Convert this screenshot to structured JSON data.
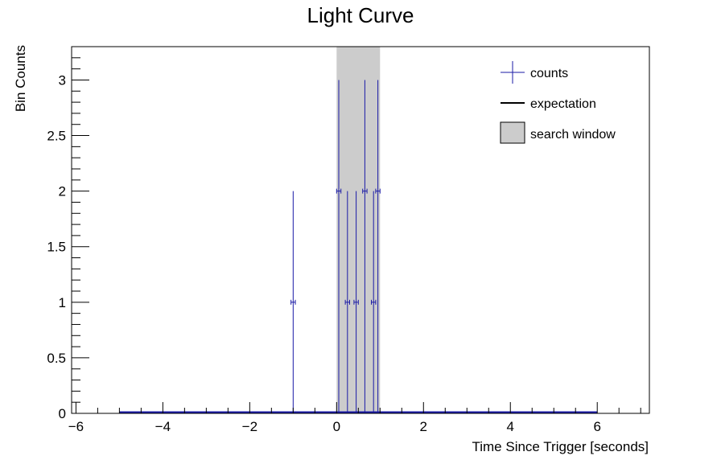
{
  "chart_data": {
    "type": "scatter",
    "title": "Light Curve",
    "xlabel": "Time Since Trigger [seconds]",
    "ylabel": "Bin Counts",
    "xlim": [
      -6.1,
      7.2
    ],
    "ylim": [
      0,
      3.3
    ],
    "x_ticks": [
      -6,
      -4,
      -2,
      0,
      2,
      4,
      6
    ],
    "x_tick_labels": [
      "−6",
      "−4",
      "−2",
      "0",
      "2",
      "4",
      "6"
    ],
    "y_ticks": [
      0,
      0.5,
      1,
      1.5,
      2,
      2.5,
      3
    ],
    "y_tick_labels": [
      "0",
      "0.5",
      "1",
      "1.5",
      "2",
      "2.5",
      "3"
    ],
    "grid": false,
    "legend_position": "top-right",
    "legend": [
      {
        "label": "counts",
        "marker": "error-cross",
        "color": "#1a1aa6"
      },
      {
        "label": "expectation",
        "marker": "line",
        "color": "#000000"
      },
      {
        "label": "search window",
        "marker": "box",
        "color": "#cccccc"
      }
    ],
    "search_window": {
      "x_start": 0.0,
      "x_end": 1.0,
      "color": "#cccccc"
    },
    "expectation": {
      "x": [
        -5.0,
        6.0
      ],
      "y": [
        0.0,
        0.0
      ],
      "color": "#000000"
    },
    "baseline": {
      "x_start": -5.0,
      "x_end": 6.0,
      "y": 0.0,
      "color": "#1a1aa6"
    },
    "series": [
      {
        "name": "counts",
        "color": "#1a1aa6",
        "bin_width": 0.1,
        "points": [
          {
            "x": -1.0,
            "y": 1,
            "err_low": 1,
            "err_high": 1
          },
          {
            "x": 0.05,
            "y": 2,
            "err_low": 2,
            "err_high": 1
          },
          {
            "x": 0.25,
            "y": 1,
            "err_low": 1,
            "err_high": 1
          },
          {
            "x": 0.45,
            "y": 1,
            "err_low": 1,
            "err_high": 1
          },
          {
            "x": 0.65,
            "y": 2,
            "err_low": 2,
            "err_high": 1
          },
          {
            "x": 0.85,
            "y": 1,
            "err_low": 1,
            "err_high": 1
          },
          {
            "x": 0.95,
            "y": 2,
            "err_low": 2,
            "err_high": 1
          }
        ]
      }
    ]
  }
}
